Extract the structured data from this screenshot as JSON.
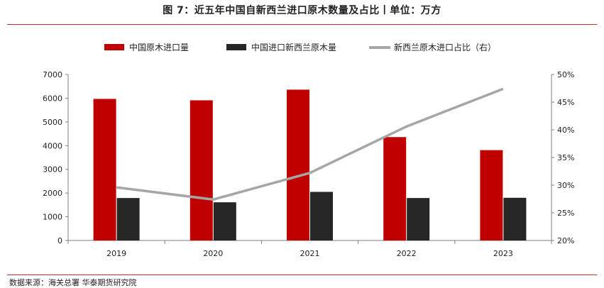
{
  "title": "图 7：近五年中国自新西兰进口原木数量及占比丨单位：万方",
  "source": "数据来源：海关总署 华泰期货研究院",
  "chart_data": {
    "type": "bar",
    "categories": [
      "2019",
      "2020",
      "2021",
      "2022",
      "2023"
    ],
    "series": [
      {
        "name": "中国原木进口量",
        "kind": "bar",
        "axis": "left",
        "color": "#c00000",
        "values": [
          5970,
          5910,
          6360,
          4360,
          3810
        ]
      },
      {
        "name": "中国进口新西兰原木量",
        "kind": "bar",
        "axis": "left",
        "color": "#262626",
        "values": [
          1790,
          1610,
          2050,
          1790,
          1800
        ]
      },
      {
        "name": "新西兰原木进口占比（右）",
        "kind": "line",
        "axis": "right",
        "color": "#a6a6a6",
        "values": [
          29.6,
          27.4,
          32.2,
          40.6,
          47.4
        ]
      }
    ],
    "y_left": {
      "min": 0,
      "max": 7000,
      "ticks": [
        0,
        1000,
        2000,
        3000,
        4000,
        5000,
        6000,
        7000
      ]
    },
    "y_right": {
      "min": 20,
      "max": 50,
      "ticks": [
        20,
        25,
        30,
        35,
        40,
        45,
        50
      ],
      "tick_labels": [
        "20%",
        "25%",
        "30%",
        "35%",
        "40%",
        "45%",
        "50%"
      ]
    },
    "legend_position": "top-center",
    "grid": false
  }
}
